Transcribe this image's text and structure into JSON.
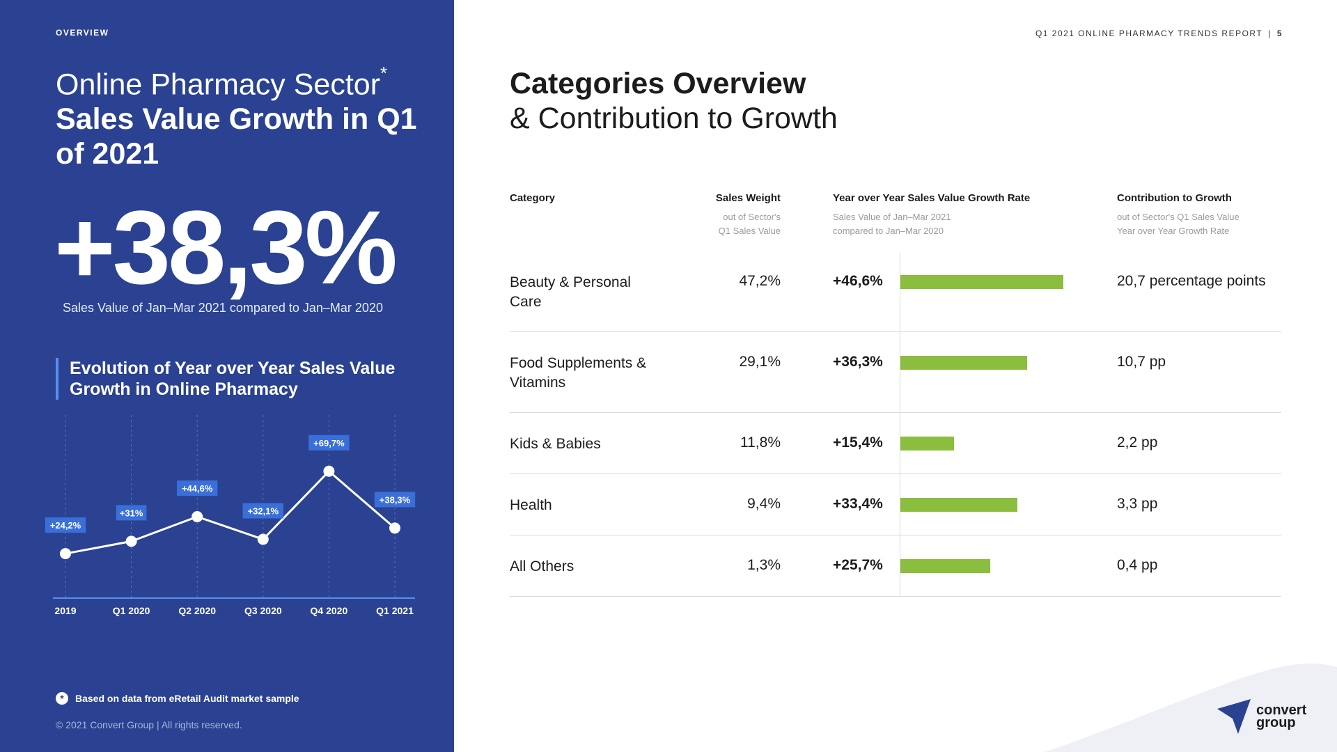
{
  "left": {
    "section_tag": "OVERVIEW",
    "sector_line": "Online Pharmacy Sector",
    "sector_asterisk": "*",
    "growth_title": "Sales Value Growth in Q1 of 2021",
    "big_number": "+38,3%",
    "big_caption": "Sales Value of Jan–Mar 2021 compared to Jan–Mar 2020",
    "evolution_title": "Evolution of Year over Year Sales Value Growth in Online Pharmacy",
    "footnote_icon": "*",
    "footnote": "Based on data from eRetail Audit market sample",
    "copyright": "© 2021 Convert Group  |  All rights reserved."
  },
  "header": {
    "report_title": "Q1 2021 ONLINE PHARMACY TRENDS REPORT",
    "separator": "|",
    "page_number": "5"
  },
  "right": {
    "title": "Categories Overview",
    "subtitle": "& Contribution to Growth",
    "columns": {
      "category": "Category",
      "weight": "Sales Weight",
      "weight_sub1": "out of Sector's",
      "weight_sub2": "Q1 Sales Value",
      "growth": "Year over Year Sales Value Growth Rate",
      "growth_sub1": "Sales Value of Jan–Mar 2021",
      "growth_sub2": "compared to Jan–Mar 2020",
      "contrib": "Contribution to Growth",
      "contrib_sub1": "out of Sector's Q1 Sales Value",
      "contrib_sub2": "Year over Year Growth Rate"
    },
    "rows": [
      {
        "category": "Beauty & Personal Care",
        "weight": "47,2%",
        "growth": "+46,6%",
        "contrib": "20,7 percentage points"
      },
      {
        "category": "Food Supplements & Vitamins",
        "weight": "29,1%",
        "growth": "+36,3%",
        "contrib": "10,7 pp"
      },
      {
        "category": "Kids & Babies",
        "weight": "11,8%",
        "growth": "+15,4%",
        "contrib": "2,2 pp"
      },
      {
        "category": "Health",
        "weight": "9,4%",
        "growth": "+33,4%",
        "contrib": "3,3 pp"
      },
      {
        "category": "All Others",
        "weight": "1,3%",
        "growth": "+25,7%",
        "contrib": "0,4 pp"
      }
    ]
  },
  "logo": {
    "line1": "convert",
    "line2": "group"
  },
  "colors": {
    "panel_blue": "#2a4291",
    "bar_green": "#8bbd3f",
    "label_blue": "#3a6fd8"
  },
  "chart_data": [
    {
      "type": "line",
      "title": "Evolution of Year over Year Sales Value Growth in Online Pharmacy",
      "categories": [
        "2019",
        "Q1 2020",
        "Q2 2020",
        "Q3 2020",
        "Q4 2020",
        "Q1 2021"
      ],
      "values": [
        24.2,
        31,
        44.6,
        32.1,
        69.7,
        38.3
      ],
      "labels": [
        "+24,2%",
        "+31%",
        "+44,6%",
        "+32,1%",
        "+69,7%",
        "+38,3%"
      ],
      "ylim": [
        0,
        100
      ],
      "grid": "vertical dashed"
    },
    {
      "type": "bar",
      "orientation": "horizontal",
      "title": "Year over Year Sales Value Growth Rate",
      "categories": [
        "Beauty & Personal Care",
        "Food Supplements & Vitamins",
        "Kids & Babies",
        "Health",
        "All Others"
      ],
      "values": [
        46.6,
        36.3,
        15.4,
        33.4,
        25.7
      ],
      "xlim": [
        0,
        60
      ]
    }
  ]
}
